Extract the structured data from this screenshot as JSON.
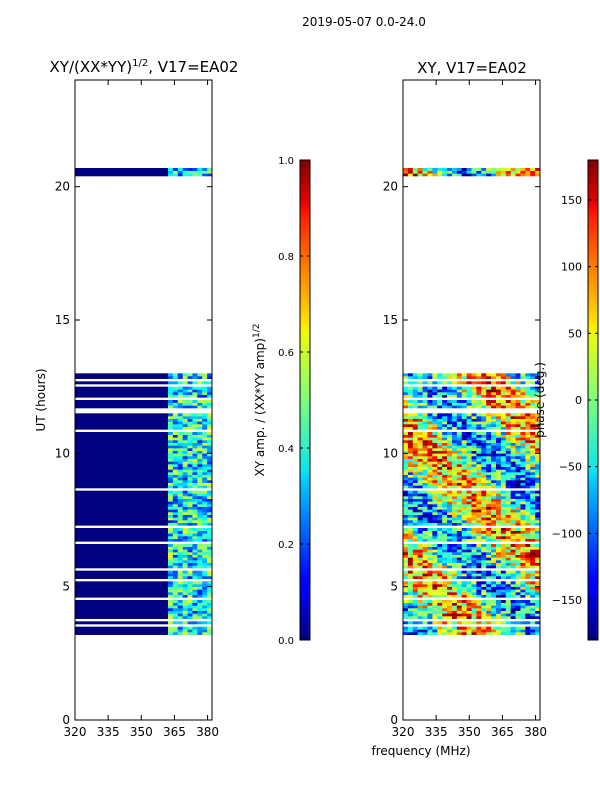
{
  "figure": {
    "suptitle": "2019-05-07 0.0-24.0",
    "xlabel_shared": "frequency (MHz)"
  },
  "chart_data": [
    {
      "type": "heatmap",
      "title": "XY/(XX*YY)",
      "title_sup": "1/2",
      "title_suffix": ", V17=EA02",
      "xlabel": "frequency (MHz)",
      "ylabel": "UT (hours)",
      "xlim": [
        320,
        382
      ],
      "ylim": [
        0,
        24
      ],
      "xticks": [
        320,
        335,
        350,
        365,
        380
      ],
      "yticks": [
        0,
        5,
        10,
        15,
        20
      ],
      "colormap": "jet",
      "clim": [
        0.0,
        1.0
      ],
      "colorbar_label": "XY amp. / (XX*YY amp)",
      "colorbar_label_sup": "1/2",
      "colorbar_ticks": [
        "0.0",
        "0.2",
        "0.4",
        "0.6",
        "0.8",
        "1.0"
      ],
      "colorbar_tick_values": [
        0.0,
        0.2,
        0.4,
        0.6,
        0.8,
        1.0
      ],
      "data_blocks_utc_hours": [
        [
          3.2,
          13.0
        ],
        [
          20.4,
          20.7
        ]
      ],
      "data_gaps_utc_hours": [
        3.5,
        3.7,
        4.5,
        5.2,
        5.6,
        6.6,
        7.2,
        8.6,
        10.8,
        11.5,
        11.6,
        12.0,
        12.5,
        12.7
      ],
      "active_band_mhz": [
        362,
        382
      ],
      "low_band_value": 0.0
    },
    {
      "type": "heatmap",
      "title": "XY, V17=EA02",
      "xlabel": "frequency (MHz)",
      "ylabel": "",
      "xlim": [
        320,
        382
      ],
      "ylim": [
        0,
        24
      ],
      "xticks": [
        320,
        335,
        350,
        365,
        380
      ],
      "yticks": [
        0,
        5,
        10,
        15,
        20
      ],
      "colormap": "jet",
      "clim": [
        -180,
        180
      ],
      "colorbar_label": "phase (deg.)",
      "colorbar_ticks": [
        "150",
        "100",
        "50",
        "0",
        "−50",
        "−100",
        "−150"
      ],
      "colorbar_tick_values": [
        150,
        100,
        50,
        0,
        -50,
        -100,
        -150
      ],
      "data_blocks_utc_hours": [
        [
          3.2,
          13.0
        ],
        [
          20.4,
          20.7
        ]
      ],
      "data_gaps_utc_hours": [
        3.5,
        3.7,
        4.5,
        5.2,
        5.6,
        6.6,
        7.2,
        8.6,
        10.8,
        11.5,
        11.6,
        12.0,
        12.5,
        12.7
      ]
    }
  ]
}
